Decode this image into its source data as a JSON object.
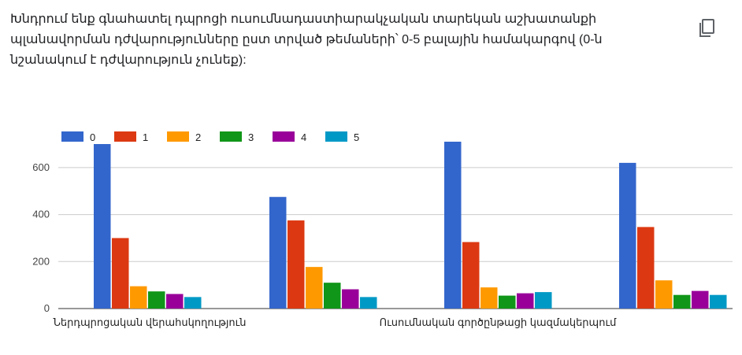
{
  "question": {
    "text": "Խնդրում ենք գնահատել դպրոցի ուսումնադաստիարակչական տարեկան աշխատանքի պլանավորման դժվարությունները ըստ տրված թեմաների՝ 0-5 բալային համակարգով (0-ն նշանակում է դժվարություն չունեք):"
  },
  "copy_icon": "copy-icon",
  "chart_data": {
    "type": "bar",
    "categories": [
      "Ներդպրոցական վերահսկողություն",
      "",
      "Ուսումնական գործընթացի կազմակերպում",
      ""
    ],
    "series": [
      {
        "name": "0",
        "color": "#3366cc",
        "values": [
          700,
          475,
          710,
          620
        ]
      },
      {
        "name": "1",
        "color": "#dc3912",
        "values": [
          300,
          375,
          283,
          347
        ]
      },
      {
        "name": "2",
        "color": "#ff9900",
        "values": [
          95,
          177,
          90,
          120
        ]
      },
      {
        "name": "3",
        "color": "#109618",
        "values": [
          73,
          110,
          55,
          58
        ]
      },
      {
        "name": "4",
        "color": "#990099",
        "values": [
          62,
          82,
          65,
          75
        ]
      },
      {
        "name": "5",
        "color": "#0099c6",
        "values": [
          49,
          49,
          70,
          58
        ]
      }
    ],
    "y_ticks": [
      "0",
      "200",
      "400",
      "600"
    ],
    "ylim": [
      0,
      700
    ],
    "legend_position": "top-left",
    "grid": true
  }
}
